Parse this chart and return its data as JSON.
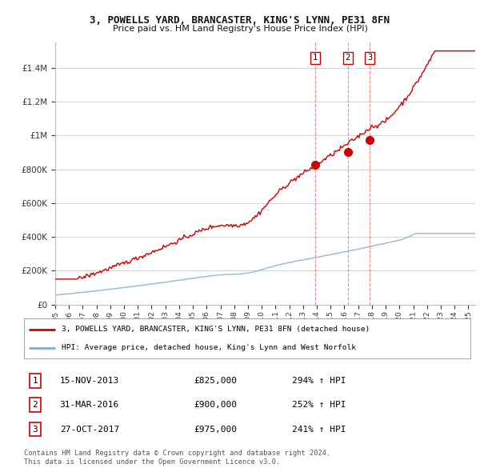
{
  "title_line1": "3, POWELLS YARD, BRANCASTER, KING'S LYNN, PE31 8FN",
  "title_line2": "Price paid vs. HM Land Registry's House Price Index (HPI)",
  "ylabel_ticks": [
    "£0",
    "£200K",
    "£400K",
    "£600K",
    "£800K",
    "£1M",
    "£1.2M",
    "£1.4M"
  ],
  "ytick_values": [
    0,
    200000,
    400000,
    600000,
    800000,
    1000000,
    1200000,
    1400000
  ],
  "ylim": [
    0,
    1550000
  ],
  "xlim_start": 1995.0,
  "xlim_end": 2025.5,
  "sale_years": [
    2013.875,
    2016.25,
    2017.833
  ],
  "sale_prices": [
    825000,
    900000,
    975000
  ],
  "sale_labels": [
    "1",
    "2",
    "3"
  ],
  "sale_date_strs": [
    "15-NOV-2013",
    "31-MAR-2016",
    "27-OCT-2017"
  ],
  "sale_price_strs": [
    "£825,000",
    "£900,000",
    "£975,000"
  ],
  "sale_pct_strs": [
    "294% ↑ HPI",
    "252% ↑ HPI",
    "241% ↑ HPI"
  ],
  "red_line_color": "#cc0000",
  "blue_line_color": "#88aacc",
  "legend_red_label": "3, POWELLS YARD, BRANCASTER, KING'S LYNN, PE31 8FN (detached house)",
  "legend_blue_label": "HPI: Average price, detached house, King's Lynn and West Norfolk",
  "footer_line1": "Contains HM Land Registry data © Crown copyright and database right 2024.",
  "footer_line2": "This data is licensed under the Open Government Licence v3.0.",
  "background_color": "#ffffff",
  "grid_color": "#cccccc",
  "xtick_years": [
    1995,
    1996,
    1997,
    1998,
    1999,
    2000,
    2001,
    2002,
    2003,
    2004,
    2005,
    2006,
    2007,
    2008,
    2009,
    2010,
    2011,
    2012,
    2013,
    2014,
    2015,
    2016,
    2017,
    2018,
    2019,
    2020,
    2021,
    2022,
    2023,
    2024,
    2025
  ]
}
